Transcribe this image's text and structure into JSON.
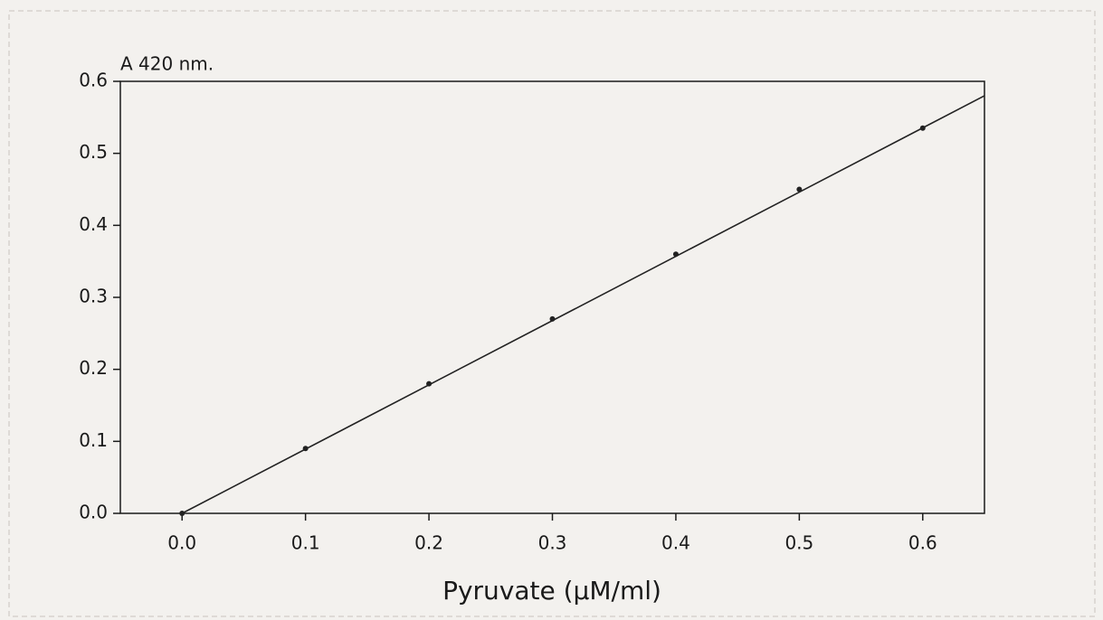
{
  "chart_data": {
    "type": "scatter",
    "y_label": "A 420 nm.",
    "x_label": "Pyruvate (μM/ml)",
    "x": [
      0,
      0.1,
      0.2,
      0.3,
      0.4,
      0.5,
      0.6
    ],
    "series": [
      {
        "color": "#222222",
        "values": [
          0,
          0.09,
          0.18,
          0.27,
          0.36,
          0.45,
          0.535
        ]
      }
    ],
    "fit": {
      "color": "#222222",
      "x": [
        0,
        0.65
      ],
      "values": [
        0,
        0.58
      ]
    },
    "xlim": [
      -0.05,
      0.65
    ],
    "ylim": [
      0,
      0.6
    ],
    "xticks": [
      {
        "value": 0,
        "label": "0.0"
      },
      0.1,
      0.2,
      0.3,
      0.4,
      0.5,
      0.6
    ],
    "yticks": [
      {
        "value": 0,
        "label": "0.0"
      },
      0.1,
      0.2,
      0.3,
      0.4,
      0.5,
      0.6
    ]
  }
}
